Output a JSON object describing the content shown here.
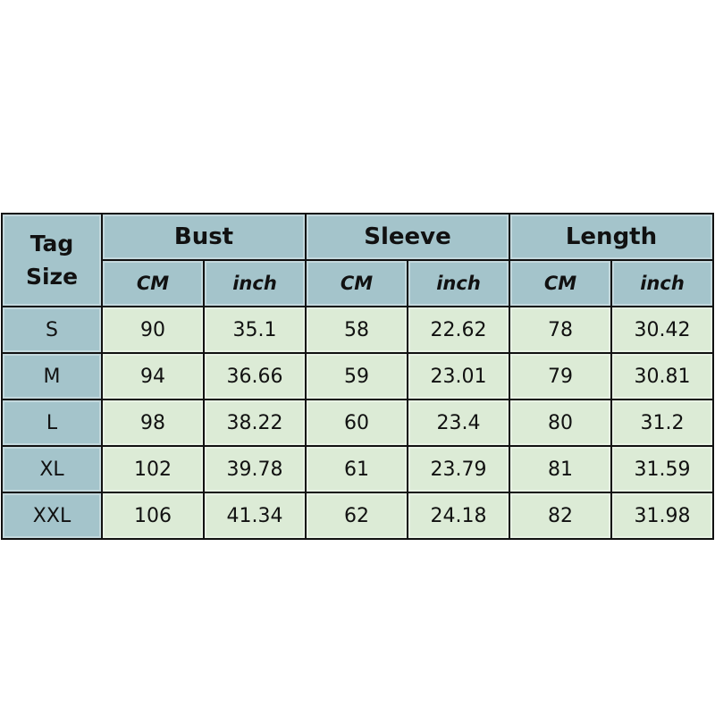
{
  "table": {
    "tag_header": [
      "Tag",
      "Size"
    ],
    "groups": [
      "Bust",
      "Sleeve",
      "Length"
    ],
    "units": [
      "CM",
      "inch",
      "CM",
      "inch",
      "CM",
      "inch"
    ],
    "rows": [
      {
        "size": "S",
        "values": [
          "90",
          "35.1",
          "58",
          "22.62",
          "78",
          "30.42"
        ]
      },
      {
        "size": "M",
        "values": [
          "94",
          "36.66",
          "59",
          "23.01",
          "79",
          "30.81"
        ]
      },
      {
        "size": "L",
        "values": [
          "98",
          "38.22",
          "60",
          "23.4",
          "80",
          "31.2"
        ]
      },
      {
        "size": "XL",
        "values": [
          "102",
          "39.78",
          "61",
          "23.79",
          "81",
          "31.59"
        ]
      },
      {
        "size": "XXL",
        "values": [
          "106",
          "41.34",
          "62",
          "24.18",
          "82",
          "31.98"
        ]
      }
    ],
    "colors": {
      "header": "#a4c4cb",
      "data": "#dcebd6",
      "border": "#111111"
    }
  }
}
